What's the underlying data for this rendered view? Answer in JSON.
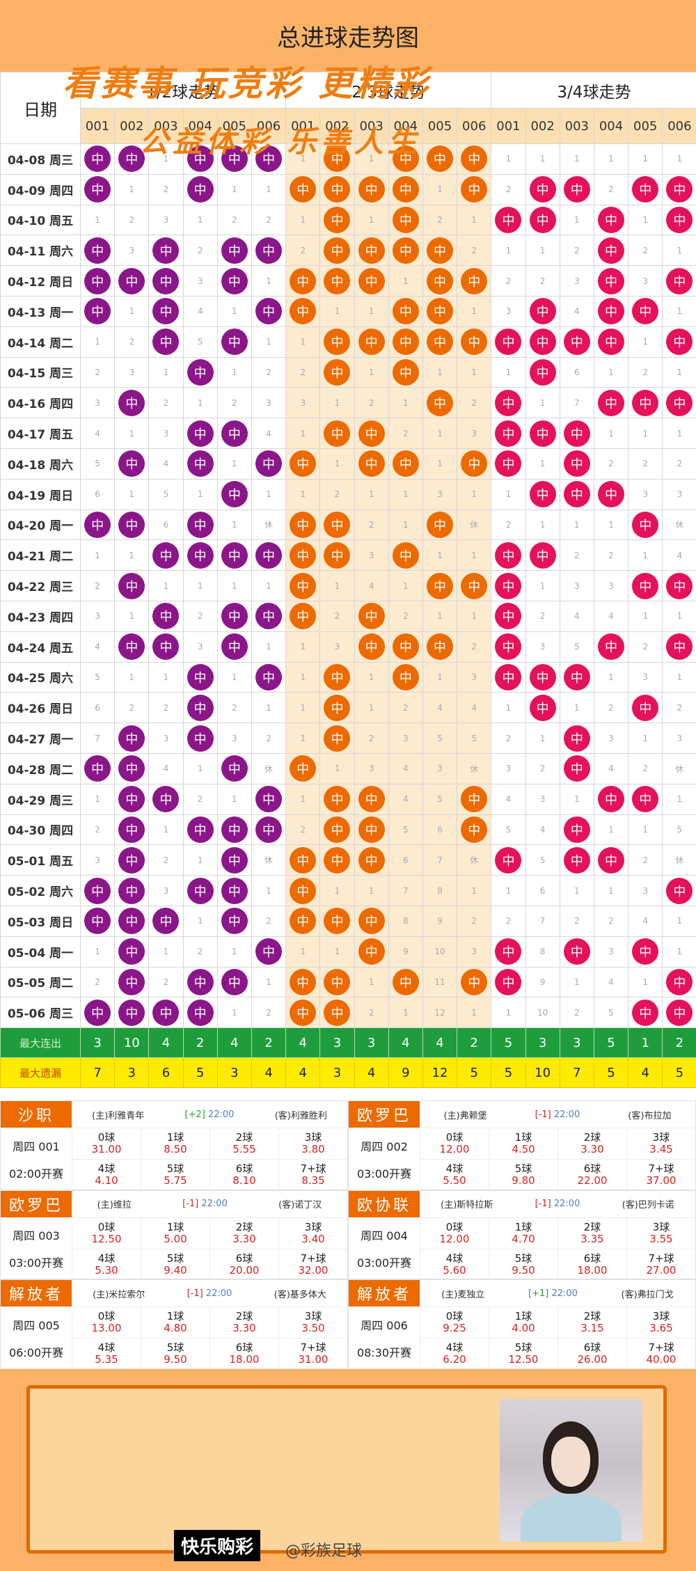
{
  "title": "总进球走势图",
  "header": {
    "date_label": "日期",
    "groups": [
      "1/2球走势",
      "2/3球走势",
      "3/4球走势"
    ],
    "subcols": [
      "001",
      "002",
      "003",
      "004",
      "005",
      "006"
    ]
  },
  "ball_text": "中",
  "rows": [
    {
      "date": "04-08 周三",
      "g": [
        [
          "中",
          "中",
          "1",
          "中",
          "中",
          "中"
        ],
        [
          "1",
          "中",
          "1",
          "中",
          "中",
          "中"
        ],
        [
          "1",
          "1",
          "1",
          "1",
          "1",
          "1"
        ]
      ]
    },
    {
      "date": "04-09 周四",
      "g": [
        [
          "中",
          "1",
          "2",
          "中",
          "1",
          "1"
        ],
        [
          "中",
          "中",
          "中",
          "中",
          "1",
          "中"
        ],
        [
          "2",
          "中",
          "中",
          "2",
          "中",
          "中"
        ]
      ]
    },
    {
      "date": "04-10 周五",
      "g": [
        [
          "1",
          "2",
          "3",
          "1",
          "2",
          "2"
        ],
        [
          "1",
          "中",
          "1",
          "中",
          "2",
          "1"
        ],
        [
          "中",
          "中",
          "1",
          "中",
          "1",
          "中"
        ]
      ]
    },
    {
      "date": "04-11 周六",
      "g": [
        [
          "中",
          "3",
          "中",
          "2",
          "中",
          "中"
        ],
        [
          "2",
          "中",
          "中",
          "中",
          "中",
          "2"
        ],
        [
          "1",
          "1",
          "2",
          "中",
          "2",
          "1"
        ]
      ]
    },
    {
      "date": "04-12 周日",
      "g": [
        [
          "中",
          "中",
          "中",
          "3",
          "中",
          "1"
        ],
        [
          "中",
          "中",
          "中",
          "1",
          "中",
          "中"
        ],
        [
          "2",
          "2",
          "3",
          "中",
          "3",
          "中"
        ]
      ]
    },
    {
      "date": "04-13 周一",
      "g": [
        [
          "中",
          "1",
          "中",
          "4",
          "1",
          "中"
        ],
        [
          "中",
          "1",
          "1",
          "中",
          "中",
          "1"
        ],
        [
          "3",
          "中",
          "4",
          "中",
          "中",
          "1"
        ]
      ]
    },
    {
      "date": "04-14 周二",
      "g": [
        [
          "1",
          "2",
          "中",
          "5",
          "中",
          "1"
        ],
        [
          "1",
          "中",
          "中",
          "中",
          "中",
          "中"
        ],
        [
          "中",
          "中",
          "中",
          "中",
          "1",
          "中"
        ]
      ]
    },
    {
      "date": "04-15 周三",
      "g": [
        [
          "2",
          "3",
          "1",
          "中",
          "1",
          "2"
        ],
        [
          "2",
          "中",
          "1",
          "中",
          "1",
          "1"
        ],
        [
          "1",
          "中",
          "6",
          "1",
          "2",
          "1"
        ]
      ]
    },
    {
      "date": "04-16 周四",
      "g": [
        [
          "3",
          "中",
          "2",
          "1",
          "2",
          "3"
        ],
        [
          "3",
          "1",
          "2",
          "1",
          "中",
          "2"
        ],
        [
          "中",
          "1",
          "7",
          "中",
          "中",
          "中"
        ]
      ]
    },
    {
      "date": "04-17 周五",
      "g": [
        [
          "4",
          "1",
          "3",
          "中",
          "中",
          "4"
        ],
        [
          "1",
          "中",
          "中",
          "2",
          "1",
          "3"
        ],
        [
          "中",
          "中",
          "中",
          "1",
          "1",
          "1"
        ]
      ]
    },
    {
      "date": "04-18 周六",
      "g": [
        [
          "5",
          "中",
          "4",
          "中",
          "1",
          "中"
        ],
        [
          "中",
          "1",
          "中",
          "中",
          "1",
          "中"
        ],
        [
          "中",
          "1",
          "中",
          "2",
          "2",
          "2"
        ]
      ]
    },
    {
      "date": "04-19 周日",
      "g": [
        [
          "6",
          "1",
          "5",
          "1",
          "中",
          "1"
        ],
        [
          "1",
          "2",
          "1",
          "1",
          "3",
          "1"
        ],
        [
          "1",
          "中",
          "中",
          "中",
          "3",
          "3"
        ]
      ]
    },
    {
      "date": "04-20 周一",
      "g": [
        [
          "中",
          "中",
          "6",
          "中",
          "1",
          "休"
        ],
        [
          "中",
          "中",
          "2",
          "1",
          "中",
          "休"
        ],
        [
          "2",
          "1",
          "1",
          "1",
          "中",
          "休"
        ]
      ]
    },
    {
      "date": "04-21 周二",
      "g": [
        [
          "1",
          "1",
          "中",
          "中",
          "中",
          "中"
        ],
        [
          "中",
          "中",
          "3",
          "中",
          "1",
          "1"
        ],
        [
          "中",
          "中",
          "2",
          "2",
          "1",
          "4"
        ]
      ]
    },
    {
      "date": "04-22 周三",
      "g": [
        [
          "2",
          "中",
          "1",
          "1",
          "1",
          "1"
        ],
        [
          "中",
          "1",
          "4",
          "1",
          "中",
          "中"
        ],
        [
          "中",
          "1",
          "3",
          "3",
          "中",
          "中"
        ]
      ]
    },
    {
      "date": "04-23 周四",
      "g": [
        [
          "3",
          "1",
          "中",
          "2",
          "中",
          "中"
        ],
        [
          "中",
          "2",
          "中",
          "2",
          "1",
          "1"
        ],
        [
          "中",
          "2",
          "4",
          "4",
          "1",
          "1"
        ]
      ]
    },
    {
      "date": "04-24 周五",
      "g": [
        [
          "4",
          "中",
          "中",
          "3",
          "中",
          "1"
        ],
        [
          "1",
          "3",
          "中",
          "中",
          "中",
          "2"
        ],
        [
          "中",
          "3",
          "5",
          "中",
          "2",
          "中"
        ]
      ]
    },
    {
      "date": "04-25 周六",
      "g": [
        [
          "5",
          "1",
          "1",
          "中",
          "1",
          "中"
        ],
        [
          "1",
          "中",
          "1",
          "中",
          "1",
          "3"
        ],
        [
          "中",
          "中",
          "中",
          "1",
          "3",
          "1"
        ]
      ]
    },
    {
      "date": "04-26 周日",
      "g": [
        [
          "6",
          "2",
          "2",
          "中",
          "2",
          "1"
        ],
        [
          "1",
          "中",
          "1",
          "2",
          "4",
          "4"
        ],
        [
          "1",
          "中",
          "1",
          "2",
          "中",
          "2"
        ]
      ]
    },
    {
      "date": "04-27 周一",
      "g": [
        [
          "7",
          "中",
          "3",
          "中",
          "3",
          "2"
        ],
        [
          "1",
          "中",
          "2",
          "3",
          "5",
          "5"
        ],
        [
          "2",
          "1",
          "中",
          "3",
          "1",
          "3"
        ]
      ]
    },
    {
      "date": "04-28 周二",
      "g": [
        [
          "中",
          "中",
          "4",
          "1",
          "中",
          "休"
        ],
        [
          "中",
          "1",
          "3",
          "4",
          "3",
          "休"
        ],
        [
          "3",
          "2",
          "中",
          "4",
          "2",
          "休"
        ]
      ]
    },
    {
      "date": "04-29 周三",
      "g": [
        [
          "1",
          "中",
          "中",
          "2",
          "1",
          "中"
        ],
        [
          "1",
          "中",
          "中",
          "4",
          "5",
          "中"
        ],
        [
          "4",
          "3",
          "1",
          "中",
          "中",
          "1"
        ]
      ]
    },
    {
      "date": "04-30 周四",
      "g": [
        [
          "2",
          "中",
          "1",
          "中",
          "中",
          "中"
        ],
        [
          "2",
          "中",
          "中",
          "5",
          "6",
          "中"
        ],
        [
          "5",
          "4",
          "中",
          "1",
          "1",
          "5"
        ]
      ]
    },
    {
      "date": "05-01 周五",
      "g": [
        [
          "3",
          "中",
          "2",
          "1",
          "中",
          "休"
        ],
        [
          "中",
          "中",
          "中",
          "6",
          "7",
          "休"
        ],
        [
          "中",
          "5",
          "中",
          "中",
          "2",
          "休"
        ]
      ]
    },
    {
      "date": "05-02 周六",
      "g": [
        [
          "中",
          "中",
          "3",
          "中",
          "中",
          "1"
        ],
        [
          "中",
          "1",
          "1",
          "7",
          "8",
          "1"
        ],
        [
          "1",
          "6",
          "1",
          "1",
          "3",
          "中"
        ]
      ]
    },
    {
      "date": "05-03 周日",
      "g": [
        [
          "中",
          "中",
          "中",
          "1",
          "中",
          "2"
        ],
        [
          "中",
          "中",
          "中",
          "8",
          "9",
          "2"
        ],
        [
          "2",
          "7",
          "2",
          "2",
          "4",
          "1"
        ]
      ]
    },
    {
      "date": "05-04 周一",
      "g": [
        [
          "1",
          "中",
          "1",
          "2",
          "1",
          "中"
        ],
        [
          "1",
          "1",
          "中",
          "9",
          "10",
          "3"
        ],
        [
          "中",
          "8",
          "中",
          "3",
          "中",
          "1"
        ]
      ]
    },
    {
      "date": "05-05 周二",
      "g": [
        [
          "2",
          "中",
          "2",
          "中",
          "中",
          "1"
        ],
        [
          "中",
          "中",
          "1",
          "中",
          "11",
          "中"
        ],
        [
          "中",
          "9",
          "1",
          "4",
          "1",
          "中"
        ]
      ]
    },
    {
      "date": "05-06 周三",
      "g": [
        [
          "中",
          "中",
          "中",
          "中",
          "1",
          "2"
        ],
        [
          "中",
          "中",
          "2",
          "1",
          "12",
          "1"
        ],
        [
          "1",
          "10",
          "2",
          "5",
          "中",
          "中"
        ]
      ]
    }
  ],
  "stats": {
    "max_streak_label": "最大连出",
    "max_streak": [
      "3",
      "10",
      "4",
      "2",
      "4",
      "2",
      "4",
      "3",
      "3",
      "4",
      "4",
      "2",
      "5",
      "3",
      "3",
      "5",
      "1",
      "2"
    ],
    "max_miss_label": "最大遗漏",
    "max_miss": [
      "7",
      "3",
      "6",
      "5",
      "3",
      "4",
      "4",
      "3",
      "4",
      "9",
      "12",
      "5",
      "5",
      "10",
      "7",
      "5",
      "4",
      "5"
    ]
  },
  "matches": [
    {
      "league": "沙职",
      "league_color": "#ec6a00",
      "home": "(主)利雅青年",
      "handicap": "[+2]",
      "hc": "green",
      "time": "22:00",
      "away": "(客)利雅胜利",
      "no": "周四 001",
      "kick": "02:00开赛",
      "labels": [
        "0球",
        "1球",
        "2球",
        "3球",
        "4球",
        "5球",
        "6球",
        "7+球"
      ],
      "odds": [
        "31.00",
        "8.50",
        "5.55",
        "3.80",
        "4.10",
        "5.75",
        "8.10",
        "8.35"
      ]
    },
    {
      "league": "欧罗巴",
      "league_color": "#ec6a00",
      "home": "(主)弗赖堡",
      "handicap": "[-1]",
      "hc": "red",
      "time": "22:00",
      "away": "(客)布拉加",
      "no": "周四 002",
      "kick": "03:00开赛",
      "labels": [
        "0球",
        "1球",
        "2球",
        "3球",
        "4球",
        "5球",
        "6球",
        "7+球"
      ],
      "odds": [
        "12.00",
        "4.50",
        "3.30",
        "3.45",
        "5.50",
        "9.80",
        "22.00",
        "37.00"
      ]
    },
    {
      "league": "欧罗巴",
      "league_color": "#ec6a00",
      "home": "(主)维拉",
      "handicap": "[-1]",
      "hc": "red",
      "time": "22:00",
      "away": "(客)诺丁汉",
      "no": "周四 003",
      "kick": "03:00开赛",
      "labels": [
        "0球",
        "1球",
        "2球",
        "3球",
        "4球",
        "5球",
        "6球",
        "7+球"
      ],
      "odds": [
        "12.50",
        "5.00",
        "3.30",
        "3.40",
        "5.30",
        "9.40",
        "20.00",
        "32.00"
      ]
    },
    {
      "league": "欧协联",
      "league_color": "#ec6a00",
      "home": "(主)斯特拉斯",
      "handicap": "[-1]",
      "hc": "red",
      "time": "22:00",
      "away": "(客)巴列卡诺",
      "no": "周四 004",
      "kick": "03:00开赛",
      "labels": [
        "0球",
        "1球",
        "2球",
        "3球",
        "4球",
        "5球",
        "6球",
        "7+球"
      ],
      "odds": [
        "12.00",
        "4.70",
        "3.35",
        "3.55",
        "5.60",
        "9.50",
        "18.00",
        "27.00"
      ]
    },
    {
      "league": "解放者",
      "league_color": "#ec6a00",
      "home": "(主)米拉索尔",
      "handicap": "[-1]",
      "hc": "red",
      "time": "22:00",
      "away": "(客)基多体大",
      "no": "周四 005",
      "kick": "06:00开赛",
      "labels": [
        "0球",
        "1球",
        "2球",
        "3球",
        "4球",
        "5球",
        "6球",
        "7+球"
      ],
      "odds": [
        "13.00",
        "4.80",
        "3.30",
        "3.50",
        "5.35",
        "9.50",
        "18.00",
        "31.00"
      ]
    },
    {
      "league": "解放者",
      "league_color": "#ec6a00",
      "home": "(主)麦独立",
      "handicap": "[+1]",
      "hc": "green",
      "time": "22:00",
      "away": "(客)弗拉门戈",
      "no": "周四 006",
      "kick": "08:30开赛",
      "labels": [
        "0球",
        "1球",
        "2球",
        "3球",
        "4球",
        "5球",
        "6球",
        "7+球"
      ],
      "odds": [
        "9.25",
        "4.00",
        "3.15",
        "3.65",
        "6.20",
        "12.50",
        "26.00",
        "40.00"
      ]
    }
  ],
  "banner": {
    "slogan1": "看赛事 玩竞彩 更精彩",
    "slogan2": "公益体彩 乐善人生",
    "brand": "快乐购彩",
    "weibo": "@彩族足球"
  },
  "colors": {
    "group1_ball": "#8b1689",
    "group2_ball": "#ec6a00",
    "group3_ball": "#e5115b",
    "streak_row": "#1f9d3c",
    "miss_row": "#ffeb00",
    "banner": "#fbb266"
  }
}
